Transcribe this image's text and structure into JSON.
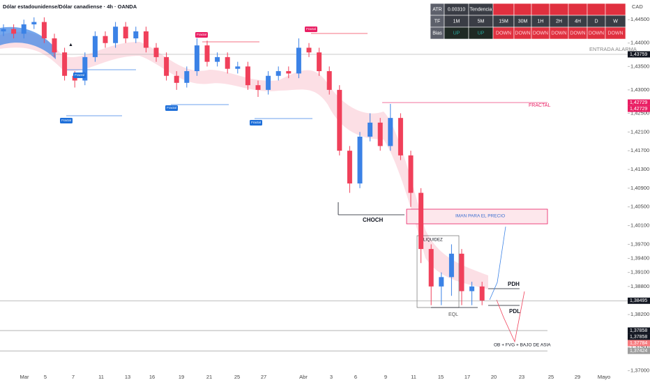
{
  "chart_data": {
    "type": "candlestick",
    "title": "Dólar estadounidense/Dólar canadiense · 4h · OANDA",
    "currency": "CAD",
    "x_labels": [
      "Mar",
      "5",
      "7",
      "11",
      "13",
      "16",
      "19",
      "21",
      "25",
      "27",
      "Abr",
      "3",
      "6",
      "9",
      "11",
      "15",
      "17",
      "20",
      "23",
      "25",
      "29",
      "Mayo"
    ],
    "open": [
      1.4425,
      1.443,
      1.442,
      1.444,
      1.4445,
      1.441,
      1.438,
      1.433,
      1.432,
      1.437,
      1.4415,
      1.44,
      1.4435,
      1.441,
      1.4425,
      1.439,
      1.437,
      1.433,
      1.4315,
      1.434,
      1.4395,
      1.436,
      1.437,
      1.4345,
      1.435,
      1.431,
      1.43,
      1.433,
      1.434,
      1.4335,
      1.439,
      1.438,
      1.434,
      1.43,
      1.417,
      1.41,
      1.42,
      1.423,
      1.418,
      1.424,
      1.416,
      1.408,
      1.396,
      1.388,
      1.39,
      1.395,
      1.387,
      1.388
    ],
    "high": [
      1.444,
      1.444,
      1.445,
      1.4455,
      1.4455,
      1.442,
      1.439,
      1.434,
      1.438,
      1.4425,
      1.4425,
      1.4445,
      1.4445,
      1.4435,
      1.4435,
      1.44,
      1.438,
      1.434,
      1.435,
      1.441,
      1.4405,
      1.438,
      1.438,
      1.436,
      1.436,
      1.432,
      1.434,
      1.435,
      1.435,
      1.441,
      1.44,
      1.439,
      1.435,
      1.431,
      1.418,
      1.421,
      1.425,
      1.424,
      1.427,
      1.425,
      1.417,
      1.409,
      1.397,
      1.391,
      1.397,
      1.396,
      1.389,
      1.389
    ],
    "low": [
      1.4415,
      1.441,
      1.441,
      1.443,
      1.44,
      1.437,
      1.432,
      1.4305,
      1.431,
      1.436,
      1.439,
      1.439,
      1.44,
      1.44,
      1.438,
      1.436,
      1.432,
      1.43,
      1.4305,
      1.433,
      1.435,
      1.435,
      1.4335,
      1.4335,
      1.43,
      1.4285,
      1.429,
      1.432,
      1.4325,
      1.4325,
      1.437,
      1.433,
      1.429,
      1.416,
      1.408,
      1.409,
      1.419,
      1.417,
      1.417,
      1.415,
      1.405,
      1.393,
      1.384,
      1.384,
      1.386,
      1.384,
      1.384,
      1.384
    ],
    "close": [
      1.443,
      1.442,
      1.444,
      1.4445,
      1.441,
      1.438,
      1.433,
      1.432,
      1.437,
      1.4415,
      1.44,
      1.4435,
      1.441,
      1.4425,
      1.439,
      1.437,
      1.433,
      1.4315,
      1.434,
      1.4395,
      1.436,
      1.437,
      1.4345,
      1.435,
      1.431,
      1.43,
      1.433,
      1.434,
      1.4335,
      1.439,
      1.438,
      1.434,
      1.43,
      1.417,
      1.41,
      1.42,
      1.423,
      1.418,
      1.424,
      1.416,
      1.408,
      1.396,
      1.388,
      1.39,
      1.395,
      1.387,
      1.388,
      1.385
    ],
    "colors": {
      "up": "#3b82e6",
      "down": "#f0405a"
    },
    "ylim": [
      1.3695,
      1.4492
    ],
    "yticks": [
      {
        "value": 1.445,
        "label": "1,44500"
      },
      {
        "value": 1.44,
        "label": "1,44000"
      },
      {
        "value": 1.435,
        "label": "1,43500"
      },
      {
        "value": 1.43,
        "label": "1,43000"
      },
      {
        "value": 1.425,
        "label": "1,42500"
      },
      {
        "value": 1.421,
        "label": "1,42100"
      },
      {
        "value": 1.417,
        "label": "1,41700"
      },
      {
        "value": 1.413,
        "label": "1,41300"
      },
      {
        "value": 1.409,
        "label": "1,40900"
      },
      {
        "value": 1.405,
        "label": "1,40500"
      },
      {
        "value": 1.401,
        "label": "1,40100"
      },
      {
        "value": 1.397,
        "label": "1,39700"
      },
      {
        "value": 1.394,
        "label": "1,39400"
      },
      {
        "value": 1.391,
        "label": "1,39100"
      },
      {
        "value": 1.388,
        "label": "1,38800"
      },
      {
        "value": 1.382,
        "label": "1,38200"
      },
      {
        "value": 1.375,
        "label": "1,37500"
      },
      {
        "value": 1.37,
        "label": "1,37000"
      }
    ],
    "price_tags": [
      {
        "value": 1.43759,
        "label": "1,43759",
        "color": "#131722"
      },
      {
        "value": 1.42729,
        "label": "1,42729",
        "color": "#e91e63"
      },
      {
        "value": 1.42729,
        "label": "1,42729",
        "color": "#e91e63"
      },
      {
        "value": 1.38495,
        "label": "1,38495",
        "color": "#131722"
      },
      {
        "value": 1.37858,
        "label": "1,37858",
        "color": "#131722"
      },
      {
        "value": 1.37858,
        "label": "1,37858",
        "color": "#131722"
      },
      {
        "value": 1.37784,
        "label": "1,37784",
        "color": "#f77c80"
      },
      {
        "value": 1.37424,
        "label": "1,37424",
        "color": "#9e9e9e"
      }
    ],
    "annotations": {
      "alarm": "ENTRADA ALARMA",
      "fractal_line": "FRACTAL",
      "choch": "CHOCH",
      "magnet": "IMAN PARA EL PRECIO",
      "liquidity": "LIQUIDEZ",
      "eql": "EQL",
      "pdh": "PDH",
      "pdl": "PDL",
      "ob": "OB + FVG + BAJO DE ASIA",
      "fractal_labels": [
        "Fractal",
        "Fractal",
        "Fractal",
        "Fractal",
        "Fractal",
        "Fractal"
      ]
    }
  },
  "table": {
    "rows": [
      [
        "ATR",
        "0.00310",
        "Tendencia"
      ],
      [
        "TF",
        "1M",
        "5M",
        "15M",
        "30M",
        "1H",
        "2H",
        "4H",
        "D",
        "W"
      ],
      [
        "Bias",
        "UP",
        "UP",
        "DOWN",
        "DOWN",
        "DOWN",
        "DOWN",
        "DOWN",
        "DOWN",
        "DOWN"
      ]
    ]
  }
}
